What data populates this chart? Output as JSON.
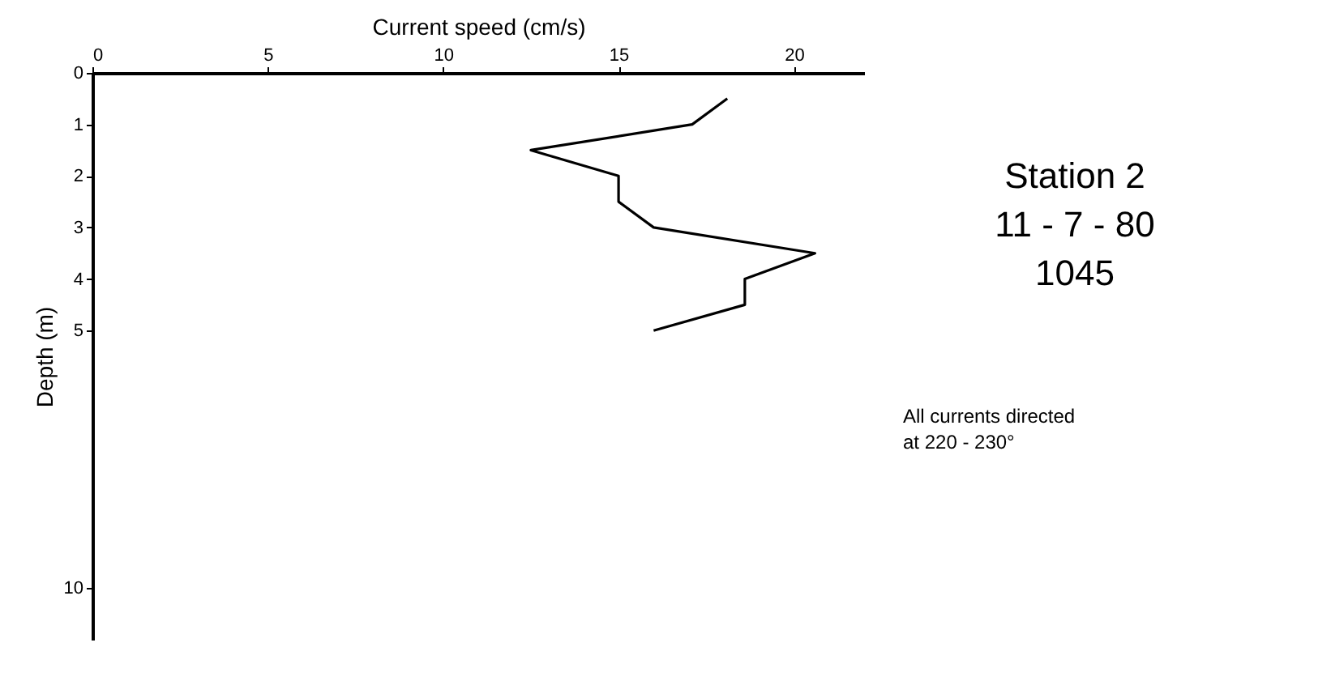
{
  "chart_data": {
    "type": "line",
    "xlabel": "Current speed (cm/s)",
    "ylabel": "Depth (m)",
    "x": [
      18.1,
      17.1,
      12.5,
      15.0,
      15.0,
      16.0,
      20.6,
      18.6,
      18.6,
      16.0
    ],
    "series": [
      {
        "color": "#000000",
        "values": [
          0.5,
          1.0,
          1.5,
          2.0,
          2.5,
          3.0,
          3.5,
          4.0,
          4.5,
          5.0
        ]
      }
    ],
    "xlim": [
      0,
      22
    ],
    "xticks": [
      0,
      5,
      10,
      15,
      20
    ],
    "ylim": [
      11,
      0
    ],
    "yticks": [
      0,
      1,
      2,
      3,
      4,
      5,
      10
    ],
    "grid": false,
    "marker": "none",
    "line_style": "solid",
    "annotations": [
      "Station 2",
      "11 - 7 - 80",
      "1045",
      "All currents directed\nat 220 - 230°"
    ]
  }
}
